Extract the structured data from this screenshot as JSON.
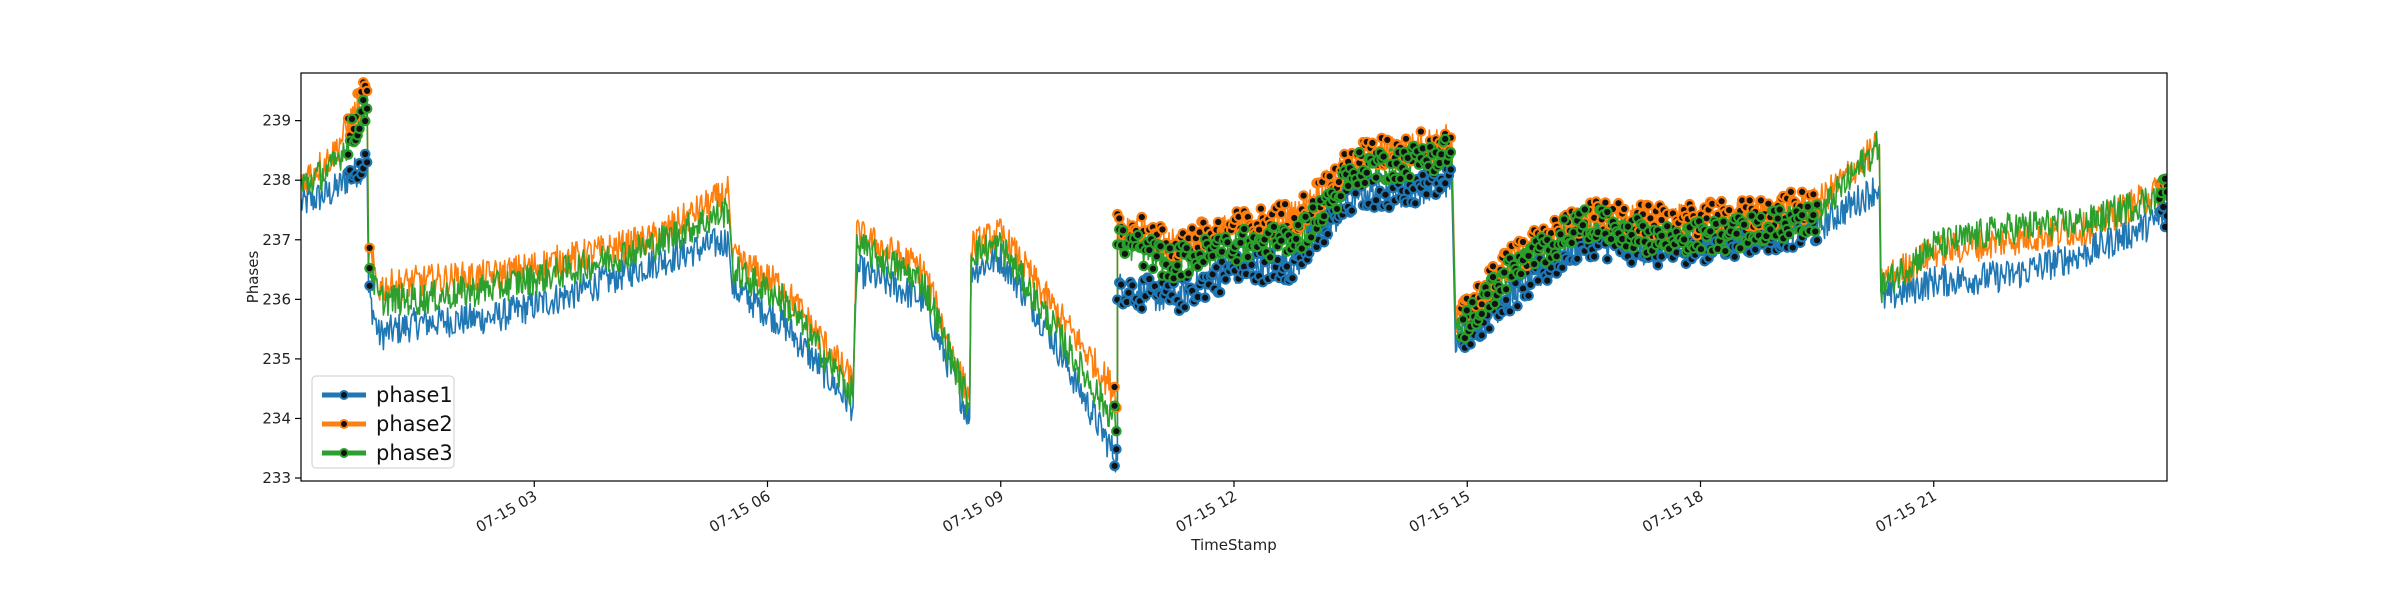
{
  "chart_data": {
    "type": "line",
    "title": "",
    "xlabel": "TimeStamp",
    "ylabel": "Phases",
    "x_unit": "hours since 07-15 00:00",
    "xlim": [
      0,
      24
    ],
    "ylim": [
      232.95,
      239.8
    ],
    "y_ticks": [
      233,
      234,
      235,
      236,
      237,
      238,
      239
    ],
    "x_ticks": [
      {
        "value": 3,
        "label": "07-15 03"
      },
      {
        "value": 6,
        "label": "07-15 06"
      },
      {
        "value": 9,
        "label": "07-15 09"
      },
      {
        "value": 12,
        "label": "07-15 12"
      },
      {
        "value": 15,
        "label": "07-15 15"
      },
      {
        "value": 18,
        "label": "07-15 18"
      },
      {
        "value": 21,
        "label": "07-15 21"
      }
    ],
    "grid": false,
    "legend_position": "lower-left",
    "colors": {
      "phase1": "#1f77b4",
      "phase2": "#ff7f0e",
      "phase3": "#2ca02c",
      "marker": "#000000"
    },
    "series": [
      {
        "name": "phase1",
        "color": "#1f77b4",
        "x": [
          0.0,
          0.4,
          0.85,
          0.87,
          1.0,
          1.5,
          2.5,
          3.5,
          4.5,
          5.5,
          5.55,
          6.2,
          7.1,
          7.15,
          8.0,
          8.6,
          8.62,
          9.0,
          9.6,
          10.5,
          10.5,
          11.2,
          12.0,
          12.8,
          13.6,
          14.2,
          14.8,
          14.85,
          15.5,
          16.5,
          17.5,
          18.5,
          19.5,
          20.3,
          20.32,
          21.0,
          22.0,
          23.0,
          24.0
        ],
        "values": [
          237.6,
          237.8,
          238.3,
          236.1,
          235.4,
          235.6,
          235.7,
          236.1,
          236.6,
          237.0,
          236.2,
          235.6,
          234.2,
          236.5,
          236.0,
          234.0,
          236.5,
          236.7,
          235.5,
          233.3,
          236.2,
          236.0,
          236.5,
          236.6,
          237.8,
          237.8,
          238.0,
          235.3,
          236.0,
          237.0,
          236.8,
          237.0,
          237.2,
          237.9,
          236.0,
          236.3,
          236.4,
          236.8,
          237.4
        ]
      },
      {
        "name": "phase2",
        "color": "#ff7f0e",
        "x": [
          0.0,
          0.4,
          0.85,
          0.87,
          1.0,
          1.5,
          2.5,
          3.5,
          4.5,
          5.5,
          5.55,
          6.2,
          7.1,
          7.15,
          8.0,
          8.6,
          8.62,
          9.0,
          9.6,
          10.5,
          10.5,
          11.2,
          12.0,
          12.8,
          13.6,
          14.2,
          14.8,
          14.85,
          15.5,
          16.5,
          17.5,
          18.5,
          19.5,
          20.3,
          20.32,
          21.0,
          22.0,
          23.0,
          24.0
        ],
        "values": [
          238.0,
          238.4,
          239.5,
          236.8,
          236.2,
          236.3,
          236.4,
          236.7,
          237.0,
          237.8,
          236.7,
          236.2,
          234.6,
          237.1,
          236.5,
          234.3,
          236.9,
          237.1,
          236.0,
          234.4,
          237.3,
          236.9,
          237.2,
          237.4,
          238.4,
          238.5,
          238.7,
          235.6,
          236.6,
          237.4,
          237.3,
          237.4,
          237.6,
          238.6,
          236.3,
          236.8,
          237.0,
          237.2,
          237.9
        ]
      },
      {
        "name": "phase3",
        "color": "#2ca02c",
        "x": [
          0.0,
          0.4,
          0.85,
          0.87,
          1.0,
          1.5,
          2.5,
          3.5,
          4.5,
          5.5,
          5.55,
          6.2,
          7.1,
          7.15,
          8.0,
          8.6,
          8.62,
          9.0,
          9.6,
          10.5,
          10.5,
          11.2,
          12.0,
          12.8,
          13.6,
          14.2,
          14.8,
          14.85,
          15.5,
          16.5,
          17.5,
          18.5,
          19.5,
          20.3,
          20.32,
          21.0,
          22.0,
          23.0,
          24.0
        ],
        "values": [
          237.9,
          238.2,
          239.2,
          236.6,
          236.0,
          236.0,
          236.2,
          236.5,
          236.9,
          237.5,
          236.5,
          236.0,
          234.4,
          236.9,
          236.3,
          234.2,
          236.8,
          236.9,
          235.7,
          233.9,
          237.0,
          236.6,
          236.9,
          237.0,
          238.2,
          238.3,
          238.5,
          235.4,
          236.4,
          237.3,
          237.0,
          237.1,
          237.4,
          238.6,
          236.2,
          236.9,
          237.2,
          237.3,
          237.8
        ]
      }
    ],
    "marker_segments": [
      [
        0.6,
        0.9
      ],
      [
        10.45,
        10.55
      ],
      [
        10.5,
        14.8
      ],
      [
        14.9,
        16.0
      ],
      [
        16.0,
        19.5
      ],
      [
        23.9,
        24.0
      ]
    ]
  }
}
